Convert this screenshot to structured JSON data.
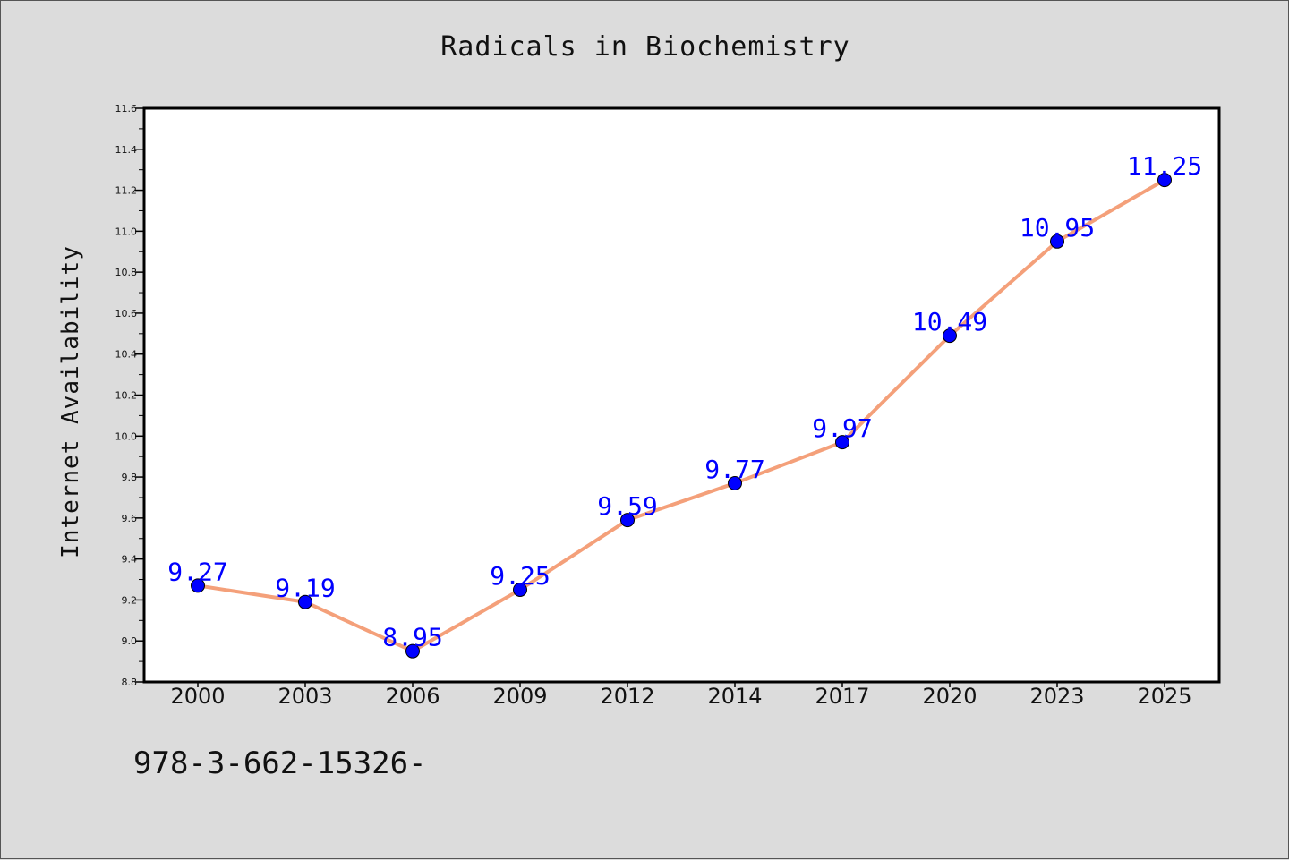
{
  "chart_data": {
    "type": "line",
    "title": "Radicals in Biochemistry",
    "xlabel": "",
    "ylabel": "Internet Availability",
    "categories": [
      "2000",
      "2003",
      "2006",
      "2009",
      "2012",
      "2014",
      "2017",
      "2020",
      "2023",
      "2025"
    ],
    "series": [
      {
        "values": [
          9.27,
          9.19,
          8.95,
          9.25,
          9.59,
          9.77,
          9.97,
          10.49,
          10.95,
          11.25
        ],
        "line_color": "#f4a07a",
        "marker_color": "#0000ff"
      }
    ],
    "data_labels": [
      "9.27",
      "9.19",
      "8.95",
      "9.25",
      "9.59",
      "9.77",
      "9.97",
      "10.49",
      "10.95",
      "11.25"
    ],
    "ylim": [
      8.8,
      11.6
    ],
    "yticks": [
      "8.8",
      "9.0",
      "9.2",
      "9.4",
      "9.6",
      "9.8",
      "10.0",
      "10.2",
      "10.4",
      "10.6",
      "10.8",
      "11.0",
      "11.2",
      "11.4",
      "11.6"
    ],
    "grid": false,
    "legend": "none"
  },
  "footer": {
    "text": "978-3-662-15326-"
  },
  "colors": {
    "background": "#dcdcdc",
    "plot_background": "#ffffff",
    "label_color": "#0000ff"
  }
}
